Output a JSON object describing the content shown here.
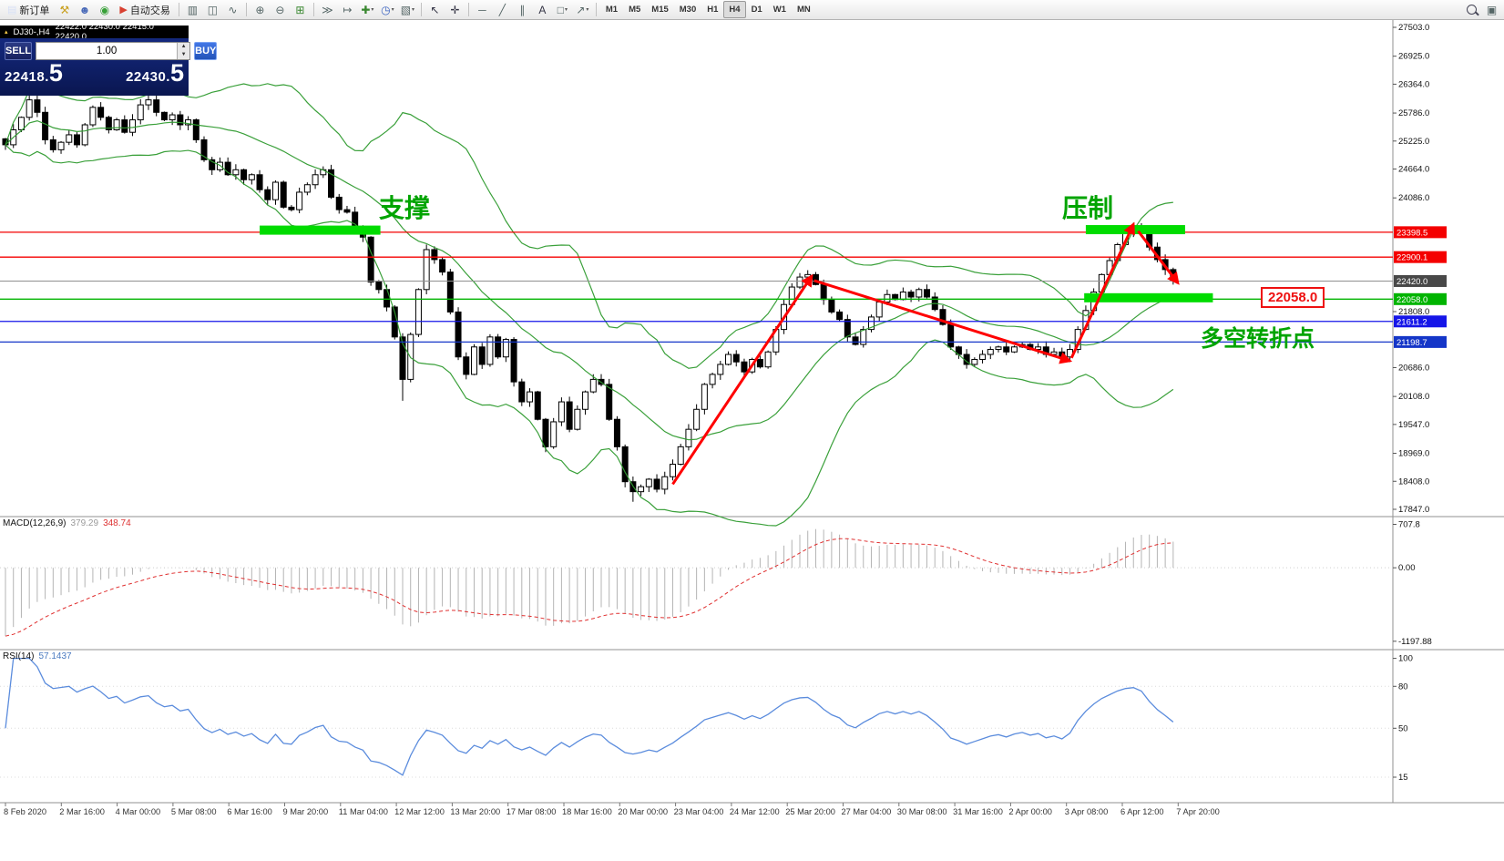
{
  "toolbar": {
    "timeframes": [
      "M1",
      "M5",
      "M15",
      "M30",
      "H1",
      "H4",
      "D1",
      "W1",
      "MN"
    ],
    "active_timeframe": "H4",
    "items": [
      {
        "type": "button",
        "name": "new-order-button",
        "glyph": "▤",
        "color": "#d7e0f6",
        "label": "新订单"
      },
      {
        "type": "icon",
        "name": "toolbox-icon",
        "glyph": "⚒",
        "color": "#c9a020"
      },
      {
        "type": "icon",
        "name": "profile-icon",
        "glyph": "☻",
        "color": "#4a6ab8"
      },
      {
        "type": "icon",
        "name": "sound-icon",
        "glyph": "◉",
        "color": "#38a038"
      },
      {
        "type": "button",
        "name": "autotrading-button",
        "glyph": "▶",
        "color": "#d84030",
        "label": "自动交易"
      },
      {
        "type": "sep"
      },
      {
        "type": "icon",
        "name": "bar-chart-icon",
        "glyph": "▥",
        "color": "#566"
      },
      {
        "type": "icon",
        "name": "candlestick-chart-icon",
        "glyph": "◫",
        "color": "#566"
      },
      {
        "type": "icon",
        "name": "line-chart-icon",
        "glyph": "∿",
        "color": "#566"
      },
      {
        "type": "sep"
      },
      {
        "type": "icon",
        "name": "zoom-in-icon",
        "glyph": "⊕",
        "color": "#566"
      },
      {
        "type": "icon",
        "name": "zoom-out-icon",
        "glyph": "⊖",
        "color": "#566"
      },
      {
        "type": "icon",
        "name": "tile-windows-icon",
        "glyph": "⊞",
        "color": "#38872f"
      },
      {
        "type": "sep"
      },
      {
        "type": "icon",
        "name": "auto-scroll-icon",
        "glyph": "≫",
        "color": "#566"
      },
      {
        "type": "icon",
        "name": "chart-shift-icon",
        "glyph": "↦",
        "color": "#566"
      },
      {
        "type": "icon",
        "name": "indicators-icon",
        "glyph": "✚",
        "color": "#38872f",
        "caret": true
      },
      {
        "type": "icon",
        "name": "periods-icon",
        "glyph": "◷",
        "color": "#3a62c0",
        "caret": true
      },
      {
        "type": "icon",
        "name": "templates-icon",
        "glyph": "▧",
        "color": "#566",
        "caret": true
      },
      {
        "type": "sep"
      },
      {
        "type": "icon",
        "name": "cursor-icon",
        "glyph": "↖",
        "color": "#334"
      },
      {
        "type": "icon",
        "name": "crosshair-icon",
        "glyph": "✛",
        "color": "#334"
      },
      {
        "type": "sep"
      },
      {
        "type": "icon",
        "name": "hline-icon",
        "glyph": "─",
        "color": "#566"
      },
      {
        "type": "icon",
        "name": "trendline-icon",
        "glyph": "╱",
        "color": "#566"
      },
      {
        "type": "icon",
        "name": "channel-icon",
        "glyph": "∥",
        "color": "#566"
      },
      {
        "type": "icon",
        "name": "text-tool-icon",
        "glyph": "A",
        "color": "#334"
      },
      {
        "type": "icon",
        "name": "shapes-icon",
        "glyph": "□",
        "color": "#566",
        "caret": true
      },
      {
        "type": "icon",
        "name": "arrows-tool-icon",
        "glyph": "↗",
        "color": "#566",
        "caret": true
      },
      {
        "type": "sep"
      },
      {
        "type": "timeframes"
      },
      {
        "type": "spacer"
      },
      {
        "type": "search",
        "name": "search-icon"
      },
      {
        "type": "icon",
        "name": "contact-icon",
        "glyph": "▣",
        "color": "#566"
      }
    ]
  },
  "chart_header": {
    "marker_glyph": "▴",
    "symbol_period": "DJ30-,H4",
    "ohlc": "22422.0 22430.0 22415.0 22420.0"
  },
  "trade_panel": {
    "sell_label": "SELL",
    "buy_label": "BUY",
    "volume": "1.00",
    "sell_price_main": "22418.",
    "sell_price_big": "5",
    "buy_price_main": "22430.",
    "buy_price_big": "5"
  },
  "annotations": {
    "support_label": "支撑",
    "resistance_label": "压制",
    "pivot_label": "多空转折点",
    "price_callout": "22058.0"
  },
  "price_axis": {
    "ticks": [
      27503.0,
      26925.0,
      26364.0,
      25786.0,
      25225.0,
      24664.0,
      24086.0,
      21808.0,
      20686.0,
      20108.0,
      19547.0,
      18969.0,
      18408.0,
      17847.0
    ],
    "tags": [
      {
        "label": "23398.5",
        "price": 23398.5,
        "bg": "#f40000"
      },
      {
        "label": "22900.1",
        "price": 22900.1,
        "bg": "#f40000"
      },
      {
        "label": "22420.0",
        "price": 22420.0,
        "bg": "#484848"
      },
      {
        "label": "22058.0",
        "price": 22058.0,
        "bg": "#00b400"
      },
      {
        "label": "21611.2",
        "price": 21611.2,
        "bg": "#1515e8"
      },
      {
        "label": "21198.7",
        "price": 21198.7,
        "bg": "#1536c8"
      }
    ]
  },
  "macd_panel": {
    "name": "MACD(12,26,9)",
    "value": "379.29",
    "signal": "348.74",
    "axis_labels": [
      "707.8",
      "0.00",
      "-1197.88"
    ],
    "axis_values": [
      707.8,
      0,
      -1197.88
    ],
    "range": [
      -1260,
      760
    ]
  },
  "rsi_panel": {
    "name": "RSI(14)",
    "value": "57.1437",
    "axis_labels": [
      "100",
      "80",
      "50",
      "15"
    ],
    "axis_values": [
      100,
      80,
      50,
      15
    ],
    "levels": [
      80,
      50,
      15
    ],
    "range": [
      0,
      103
    ]
  },
  "time_axis": {
    "labels": [
      "8 Feb 2020",
      "2 Mar 16:00",
      "4 Mar 00:00",
      "5 Mar 08:00",
      "6 Mar 16:00",
      "9 Mar 20:00",
      "11 Mar 04:00",
      "12 Mar 12:00",
      "13 Mar 20:00",
      "17 Mar 08:00",
      "18 Mar 16:00",
      "20 Mar 00:00",
      "23 Mar 04:00",
      "24 Mar 12:00",
      "25 Mar 20:00",
      "27 Mar 04:00",
      "30 Mar 08:00",
      "31 Mar 16:00",
      "2 Apr 00:00",
      "3 Apr 08:00",
      "6 Apr 12:00",
      "7 Apr 20:00"
    ]
  },
  "chart_data": {
    "type": "candlestick",
    "symbol": "DJ30-",
    "period": "H4",
    "ylim": [
      17847,
      27503
    ],
    "closes": [
      25150,
      25450,
      25700,
      26050,
      25800,
      25250,
      25050,
      25200,
      25350,
      25150,
      25550,
      25900,
      25700,
      25450,
      25650,
      25400,
      25650,
      25950,
      26050,
      25800,
      25650,
      25750,
      25550,
      25650,
      25250,
      24850,
      24650,
      24800,
      24550,
      24650,
      24450,
      24550,
      24250,
      24050,
      24400,
      23900,
      23850,
      24200,
      24350,
      24550,
      24650,
      24100,
      23850,
      23800,
      23500,
      23300,
      22400,
      22250,
      21900,
      21300,
      20450,
      21350,
      22250,
      23050,
      22850,
      22600,
      21800,
      20900,
      20550,
      21100,
      20750,
      21300,
      20900,
      21250,
      20400,
      20000,
      20200,
      19650,
      19100,
      19600,
      20000,
      19450,
      19850,
      20200,
      20450,
      20350,
      19650,
      19100,
      18400,
      18200,
      18300,
      18450,
      18250,
      18500,
      18750,
      19100,
      19450,
      19850,
      20350,
      20550,
      20750,
      20950,
      20800,
      20600,
      20850,
      20700,
      21000,
      21450,
      21950,
      22300,
      22500,
      22550,
      22350,
      22050,
      21800,
      21650,
      21300,
      21150,
      21450,
      21700,
      22000,
      22150,
      22050,
      22200,
      22100,
      22250,
      22100,
      21850,
      21550,
      21100,
      20950,
      20750,
      20850,
      20950,
      21050,
      21100,
      21000,
      21100,
      21150,
      21050,
      21100,
      20950,
      21000,
      20900,
      21050,
      21450,
      21830,
      22200,
      22550,
      22830,
      23150,
      23380,
      23470,
      23380,
      23100,
      22850,
      22650,
      22420
    ],
    "bollinger": {
      "period": 20,
      "deviation": 2,
      "color": "#2f9b2f"
    },
    "hlines": [
      {
        "price": 23398.5,
        "color": "#f40000",
        "w": 1.3
      },
      {
        "price": 22900.1,
        "color": "#f40000",
        "w": 1.3
      },
      {
        "price": 22420.0,
        "color": "#909090",
        "w": 1
      },
      {
        "price": 22058.0,
        "color": "#00b400",
        "w": 1.3
      },
      {
        "price": 21611.2,
        "color": "#1515e8",
        "w": 1.3
      },
      {
        "price": 21198.7,
        "color": "#1536c8",
        "w": 1.3
      }
    ],
    "zones": [
      {
        "from": 32,
        "to": 47.2,
        "price": 23440,
        "color": "#00dc00"
      },
      {
        "from": 136,
        "to": 148.5,
        "price": 23450,
        "color": "#00dc00"
      },
      {
        "from": 135.8,
        "to": 152,
        "price": 22085,
        "color": "#00dc00"
      }
    ],
    "arrows": [
      {
        "from": [
          84,
          18350
        ],
        "to": [
          101.5,
          22520
        ]
      },
      {
        "from": [
          101.8,
          22430
        ],
        "to": [
          134,
          20820
        ]
      },
      {
        "from": [
          134.2,
          20880
        ],
        "to": [
          142,
          23560
        ]
      },
      {
        "from": [
          142.6,
          23420
        ],
        "to": [
          147.6,
          22380
        ]
      }
    ],
    "arrow_color": "#ff0000"
  }
}
